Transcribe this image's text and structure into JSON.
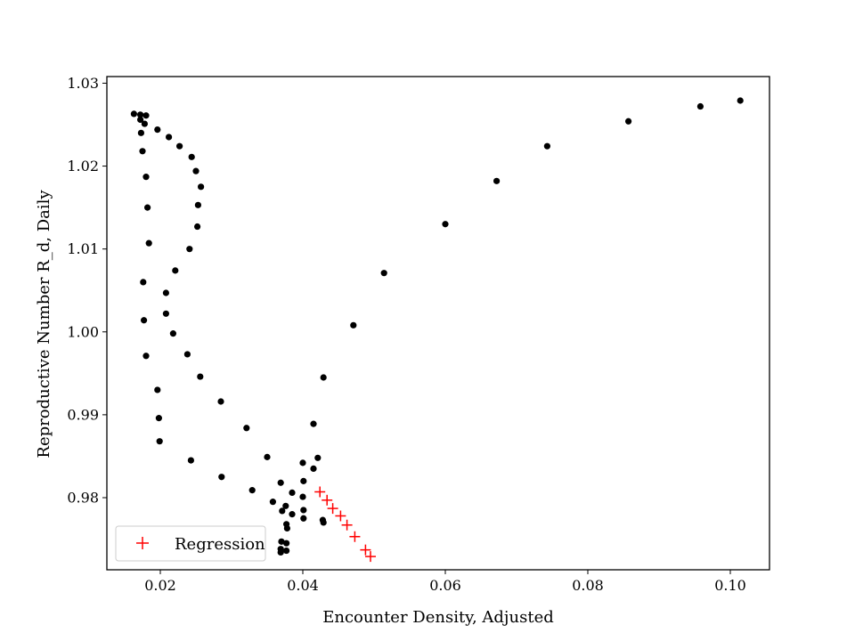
{
  "chart_data": {
    "type": "scatter",
    "title": "",
    "xlabel": "Encounter Density, Adjusted",
    "ylabel": "Reproductive Number R_d, Daily",
    "xlim": [
      0.0125,
      0.1055
    ],
    "ylim": [
      0.9713,
      1.0308
    ],
    "xticks": [
      0.02,
      0.04,
      0.06,
      0.08,
      0.1
    ],
    "xtick_labels": [
      "0.02",
      "0.04",
      "0.06",
      "0.08",
      "0.10"
    ],
    "yticks": [
      0.98,
      0.99,
      1.0,
      1.01,
      1.02,
      1.03
    ],
    "ytick_labels": [
      "0.98",
      "0.99",
      "1.00",
      "1.01",
      "1.02",
      "1.03"
    ],
    "grid": false,
    "legend": {
      "position": "lower-left",
      "entries": [
        "Regression"
      ]
    },
    "series": [
      {
        "name": "",
        "marker": "circle",
        "color": "#000000",
        "points": [
          [
            0.1014,
            1.0279
          ],
          [
            0.0958,
            1.0272
          ],
          [
            0.0857,
            1.0254
          ],
          [
            0.0743,
            1.0224
          ],
          [
            0.0672,
            1.0182
          ],
          [
            0.06,
            1.013
          ],
          [
            0.0514,
            1.0071
          ],
          [
            0.0471,
            1.0008
          ],
          [
            0.0429,
            0.9945
          ],
          [
            0.0415,
            0.9889
          ],
          [
            0.0421,
            0.9848
          ],
          [
            0.0415,
            0.9835
          ],
          [
            0.0401,
            0.982
          ],
          [
            0.04,
            0.9801
          ],
          [
            0.0401,
            0.9785
          ],
          [
            0.0401,
            0.9775
          ],
          [
            0.0428,
            0.9773
          ],
          [
            0.0429,
            0.977
          ],
          [
            0.0163,
            1.0263
          ],
          [
            0.0172,
            1.0262
          ],
          [
            0.018,
            1.0261
          ],
          [
            0.0172,
            1.0256
          ],
          [
            0.0178,
            1.0251
          ],
          [
            0.0196,
            1.0244
          ],
          [
            0.0212,
            1.0235
          ],
          [
            0.0227,
            1.0224
          ],
          [
            0.0244,
            1.0211
          ],
          [
            0.025,
            1.0194
          ],
          [
            0.0257,
            1.0175
          ],
          [
            0.0253,
            1.0153
          ],
          [
            0.0252,
            1.0127
          ],
          [
            0.0241,
            1.01
          ],
          [
            0.0221,
            1.0074
          ],
          [
            0.0208,
            1.0047
          ],
          [
            0.0208,
            1.0022
          ],
          [
            0.0218,
            0.9998
          ],
          [
            0.0238,
            0.9973
          ],
          [
            0.0256,
            0.9946
          ],
          [
            0.0285,
            0.9916
          ],
          [
            0.0321,
            0.9884
          ],
          [
            0.035,
            0.9849
          ],
          [
            0.04,
            0.9842
          ],
          [
            0.0173,
            1.024
          ],
          [
            0.0175,
            1.0218
          ],
          [
            0.018,
            1.0187
          ],
          [
            0.0182,
            1.015
          ],
          [
            0.0184,
            1.0107
          ],
          [
            0.0176,
            1.006
          ],
          [
            0.0177,
            1.0014
          ],
          [
            0.018,
            0.9971
          ],
          [
            0.0196,
            0.993
          ],
          [
            0.0198,
            0.9896
          ],
          [
            0.0199,
            0.9868
          ],
          [
            0.0243,
            0.9845
          ],
          [
            0.0286,
            0.9825
          ],
          [
            0.0329,
            0.9809
          ],
          [
            0.0358,
            0.9795
          ],
          [
            0.0369,
            0.9818
          ],
          [
            0.0385,
            0.9806
          ],
          [
            0.0371,
            0.9784
          ],
          [
            0.0376,
            0.979
          ],
          [
            0.0385,
            0.978
          ],
          [
            0.0377,
            0.9768
          ],
          [
            0.0378,
            0.9763
          ],
          [
            0.037,
            0.9747
          ],
          [
            0.0377,
            0.9745
          ],
          [
            0.0369,
            0.9738
          ],
          [
            0.0377,
            0.9736
          ],
          [
            0.0369,
            0.9734
          ]
        ]
      },
      {
        "name": "Regression",
        "marker": "plus",
        "color": "#ff0000",
        "points": [
          [
            0.0424,
            0.9807
          ],
          [
            0.0434,
            0.9797
          ],
          [
            0.0442,
            0.9787
          ],
          [
            0.0453,
            0.9778
          ],
          [
            0.0462,
            0.9767
          ],
          [
            0.0473,
            0.9753
          ],
          [
            0.0488,
            0.9737
          ],
          [
            0.0495,
            0.9729
          ]
        ]
      }
    ]
  }
}
